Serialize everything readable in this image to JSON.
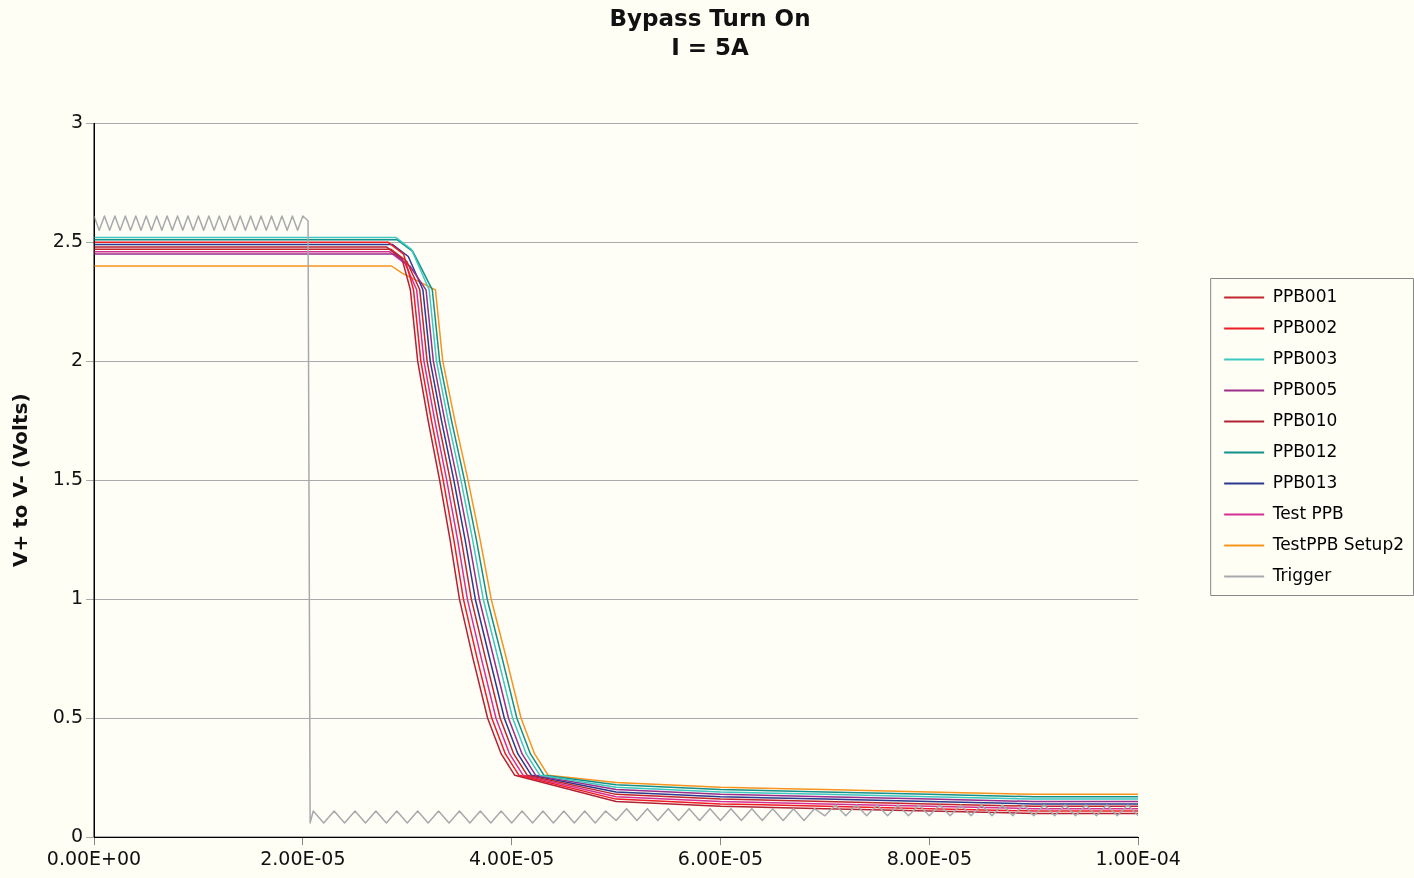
{
  "chart_data": {
    "type": "line",
    "title": "Bypass Turn On",
    "subtitle": "I = 5A",
    "ylabel": "V+ to V- (Volts)",
    "xlim": [
      0,
      0.0001
    ],
    "xticks": [
      {
        "value": 0,
        "label": "0.00E+00"
      },
      {
        "value": 2e-05,
        "label": "2.00E-05"
      },
      {
        "value": 4e-05,
        "label": "4.00E-05"
      },
      {
        "value": 6e-05,
        "label": "6.00E-05"
      },
      {
        "value": 8e-05,
        "label": "8.00E-05"
      },
      {
        "value": 0.0001,
        "label": "1.00E-04"
      }
    ],
    "ylim": [
      0,
      3
    ],
    "yticks": [
      0,
      0.5,
      1,
      1.5,
      2,
      2.5,
      3
    ],
    "grid": "y",
    "legend": "right",
    "marker": "none",
    "line_style": "solid",
    "series": [
      {
        "name": "PPB001",
        "color": "#c0272d",
        "x": [
          0,
          2.845e-05,
          2.995e-05,
          3.12e-05,
          3.19e-05,
          3.296e-05,
          3.412e-05,
          3.518e-05,
          3.614e-05,
          3.75e-05,
          3.89e-05,
          4.02e-05,
          4.15e-05,
          5e-05,
          6e-05,
          7e-05,
          8e-05,
          9e-05,
          0.0001
        ],
        "values": [
          2.47,
          2.47,
          2.42,
          2.3,
          2.0,
          1.75,
          1.5,
          1.25,
          1.0,
          0.75,
          0.5,
          0.35,
          0.26,
          0.18,
          0.16,
          0.15,
          0.14,
          0.13,
          0.13
        ]
      },
      {
        "name": "PPB002",
        "color": "#ee1c25",
        "x": [
          0,
          2.815e-05,
          2.965e-05,
          3.06e-05,
          3.13e-05,
          3.232e-05,
          3.344e-05,
          3.446e-05,
          3.538e-05,
          3.67e-05,
          3.81e-05,
          3.94e-05,
          4.07e-05,
          5e-05,
          6e-05,
          7e-05,
          8e-05,
          9e-05,
          0.0001
        ],
        "values": [
          2.5,
          2.5,
          2.45,
          2.3,
          2.0,
          1.75,
          1.5,
          1.25,
          1.0,
          0.75,
          0.5,
          0.35,
          0.26,
          0.16,
          0.14,
          0.13,
          0.12,
          0.11,
          0.11
        ]
      },
      {
        "name": "PPB003",
        "color": "#3cc8c0",
        "x": [
          0,
          2.89e-05,
          3.04e-05,
          3.21e-05,
          3.28e-05,
          3.392e-05,
          3.514e-05,
          3.626e-05,
          3.728e-05,
          3.87e-05,
          4.01e-05,
          4.14e-05,
          4.27e-05,
          5e-05,
          6e-05,
          7e-05,
          8e-05,
          9e-05,
          0.0001
        ],
        "values": [
          2.52,
          2.52,
          2.47,
          2.3,
          2.0,
          1.75,
          1.5,
          1.25,
          1.0,
          0.75,
          0.5,
          0.35,
          0.26,
          0.21,
          0.19,
          0.18,
          0.17,
          0.16,
          0.16
        ]
      },
      {
        "name": "PPB005",
        "color": "#9b2d8c",
        "x": [
          0,
          2.875e-05,
          3.025e-05,
          3.18e-05,
          3.25e-05,
          3.36e-05,
          3.48e-05,
          3.59e-05,
          3.69e-05,
          3.83e-05,
          3.97e-05,
          4.1e-05,
          4.23e-05,
          5e-05,
          6e-05,
          7e-05,
          8e-05,
          9e-05,
          0.0001
        ],
        "values": [
          2.45,
          2.45,
          2.4,
          2.3,
          2.0,
          1.75,
          1.5,
          1.25,
          1.0,
          0.75,
          0.5,
          0.35,
          0.26,
          0.2,
          0.18,
          0.17,
          0.16,
          0.15,
          0.15
        ]
      },
      {
        "name": "PPB010",
        "color": "#b22234",
        "x": [
          0,
          2.8e-05,
          2.95e-05,
          3.03e-05,
          3.1e-05,
          3.2e-05,
          3.31e-05,
          3.41e-05,
          3.5e-05,
          3.63e-05,
          3.77e-05,
          3.9e-05,
          4.03e-05,
          5e-05,
          6e-05,
          7e-05,
          8e-05,
          9e-05,
          0.0001
        ],
        "values": [
          2.48,
          2.48,
          2.43,
          2.3,
          2.0,
          1.75,
          1.5,
          1.25,
          1.0,
          0.75,
          0.5,
          0.35,
          0.26,
          0.15,
          0.13,
          0.12,
          0.11,
          0.1,
          0.1
        ]
      },
      {
        "name": "PPB012",
        "color": "#13908a",
        "x": [
          0,
          2.905e-05,
          3.055e-05,
          3.24e-05,
          3.31e-05,
          3.424e-05,
          3.548e-05,
          3.662e-05,
          3.766e-05,
          3.91e-05,
          4.05e-05,
          4.18e-05,
          4.31e-05,
          5e-05,
          6e-05,
          7e-05,
          8e-05,
          9e-05,
          0.0001
        ],
        "values": [
          2.51,
          2.51,
          2.46,
          2.3,
          2.0,
          1.75,
          1.5,
          1.25,
          1.0,
          0.75,
          0.5,
          0.35,
          0.26,
          0.22,
          0.2,
          0.19,
          0.18,
          0.17,
          0.17
        ]
      },
      {
        "name": "PPB013",
        "color": "#2b3990",
        "x": [
          0,
          2.86e-05,
          3.01e-05,
          3.15e-05,
          3.22e-05,
          3.328e-05,
          3.446e-05,
          3.554e-05,
          3.652e-05,
          3.79e-05,
          3.93e-05,
          4.06e-05,
          4.19e-05,
          5e-05,
          6e-05,
          7e-05,
          8e-05,
          9e-05,
          0.0001
        ],
        "values": [
          2.49,
          2.49,
          2.44,
          2.3,
          2.0,
          1.75,
          1.5,
          1.25,
          1.0,
          0.75,
          0.5,
          0.35,
          0.26,
          0.19,
          0.17,
          0.16,
          0.15,
          0.14,
          0.14
        ]
      },
      {
        "name": "Test PPB",
        "color": "#d62f94",
        "x": [
          0,
          2.83e-05,
          2.98e-05,
          3.09e-05,
          3.16e-05,
          3.264e-05,
          3.378e-05,
          3.482e-05,
          3.576e-05,
          3.71e-05,
          3.85e-05,
          3.98e-05,
          4.11e-05,
          5e-05,
          6e-05,
          7e-05,
          8e-05,
          9e-05,
          0.0001
        ],
        "values": [
          2.46,
          2.46,
          2.41,
          2.3,
          2.0,
          1.75,
          1.5,
          1.25,
          1.0,
          0.75,
          0.5,
          0.35,
          0.26,
          0.17,
          0.15,
          0.14,
          0.13,
          0.12,
          0.12
        ]
      },
      {
        "name": "TestPPB Setup2",
        "color": "#f7941d",
        "x": [
          0,
          2.85e-05,
          2.95e-05,
          3.27e-05,
          3.34e-05,
          3.456e-05,
          3.582e-05,
          3.698e-05,
          3.804e-05,
          3.95e-05,
          4.09e-05,
          4.22e-05,
          4.35e-05,
          5e-05,
          6e-05,
          7e-05,
          8e-05,
          9e-05,
          0.0001
        ],
        "values": [
          2.4,
          2.4,
          2.37,
          2.3,
          2.0,
          1.75,
          1.5,
          1.25,
          1.0,
          0.75,
          0.5,
          0.35,
          0.26,
          0.23,
          0.21,
          0.2,
          0.19,
          0.18,
          0.18
        ]
      },
      {
        "name": "Trigger",
        "color": "#a7a9ac",
        "x": [
          0,
          5e-07,
          1e-06,
          1.5e-06,
          2e-06,
          2.5e-06,
          3e-06,
          3.5e-06,
          4e-06,
          4.5e-06,
          5e-06,
          5.5e-06,
          6e-06,
          6.5e-06,
          7e-06,
          7.5e-06,
          8e-06,
          8.5e-06,
          9e-06,
          9.5e-06,
          1e-05,
          1.05e-05,
          1.1e-05,
          1.15e-05,
          1.2e-05,
          1.25e-05,
          1.3e-05,
          1.35e-05,
          1.4e-05,
          1.45e-05,
          1.5e-05,
          1.55e-05,
          1.6e-05,
          1.65e-05,
          1.7e-05,
          1.75e-05,
          1.8e-05,
          1.85e-05,
          1.9e-05,
          1.95e-05,
          2e-05,
          2.05e-05,
          2.07e-05,
          2.1e-05,
          2.2e-05,
          2.3e-05,
          2.4e-05,
          2.5e-05,
          2.6e-05,
          2.7e-05,
          2.8e-05,
          2.9e-05,
          3e-05,
          3.1e-05,
          3.2e-05,
          3.3e-05,
          3.4e-05,
          3.5e-05,
          3.6e-05,
          3.7e-05,
          3.8e-05,
          3.9e-05,
          4e-05,
          4.1e-05,
          4.2e-05,
          4.3e-05,
          4.4e-05,
          4.5e-05,
          4.6e-05,
          4.7e-05,
          4.8e-05,
          4.9e-05,
          5e-05,
          5.1e-05,
          5.2e-05,
          5.3e-05,
          5.4e-05,
          5.5e-05,
          5.6e-05,
          5.7e-05,
          5.8e-05,
          5.9e-05,
          6e-05,
          6.1e-05,
          6.2e-05,
          6.3e-05,
          6.4e-05,
          6.5e-05,
          6.6e-05,
          6.7e-05,
          6.8e-05,
          6.9e-05,
          7e-05,
          7.1e-05,
          7.2e-05,
          7.3e-05,
          7.4e-05,
          7.5e-05,
          7.6e-05,
          7.7e-05,
          7.8e-05,
          7.9e-05,
          8e-05,
          8.1e-05,
          8.2e-05,
          8.3e-05,
          8.4e-05,
          8.5e-05,
          8.6e-05,
          8.7e-05,
          8.8e-05,
          8.9e-05,
          9e-05,
          9.1e-05,
          9.2e-05,
          9.3e-05,
          9.4e-05,
          9.5e-05,
          9.6e-05,
          9.7e-05,
          9.8e-05,
          9.9e-05,
          0.0001
        ],
        "values": [
          2.61,
          2.55,
          2.61,
          2.55,
          2.61,
          2.55,
          2.61,
          2.55,
          2.61,
          2.55,
          2.61,
          2.55,
          2.61,
          2.55,
          2.61,
          2.55,
          2.61,
          2.55,
          2.61,
          2.55,
          2.61,
          2.55,
          2.61,
          2.55,
          2.61,
          2.55,
          2.61,
          2.55,
          2.61,
          2.55,
          2.61,
          2.55,
          2.61,
          2.55,
          2.61,
          2.55,
          2.61,
          2.55,
          2.61,
          2.55,
          2.61,
          2.59,
          0.06,
          0.11,
          0.06,
          0.11,
          0.06,
          0.11,
          0.06,
          0.11,
          0.06,
          0.11,
          0.06,
          0.11,
          0.06,
          0.11,
          0.06,
          0.11,
          0.06,
          0.11,
          0.06,
          0.11,
          0.06,
          0.11,
          0.06,
          0.11,
          0.06,
          0.11,
          0.06,
          0.11,
          0.06,
          0.11,
          0.07,
          0.12,
          0.07,
          0.12,
          0.07,
          0.12,
          0.07,
          0.12,
          0.07,
          0.12,
          0.07,
          0.12,
          0.07,
          0.12,
          0.07,
          0.12,
          0.07,
          0.12,
          0.07,
          0.12,
          0.09,
          0.135,
          0.09,
          0.135,
          0.09,
          0.135,
          0.09,
          0.135,
          0.09,
          0.135,
          0.09,
          0.135,
          0.09,
          0.135,
          0.09,
          0.135,
          0.09,
          0.135,
          0.09,
          0.135,
          0.09,
          0.135,
          0.09,
          0.135,
          0.09,
          0.135,
          0.09,
          0.135,
          0.09,
          0.135,
          0.09
        ]
      }
    ]
  }
}
